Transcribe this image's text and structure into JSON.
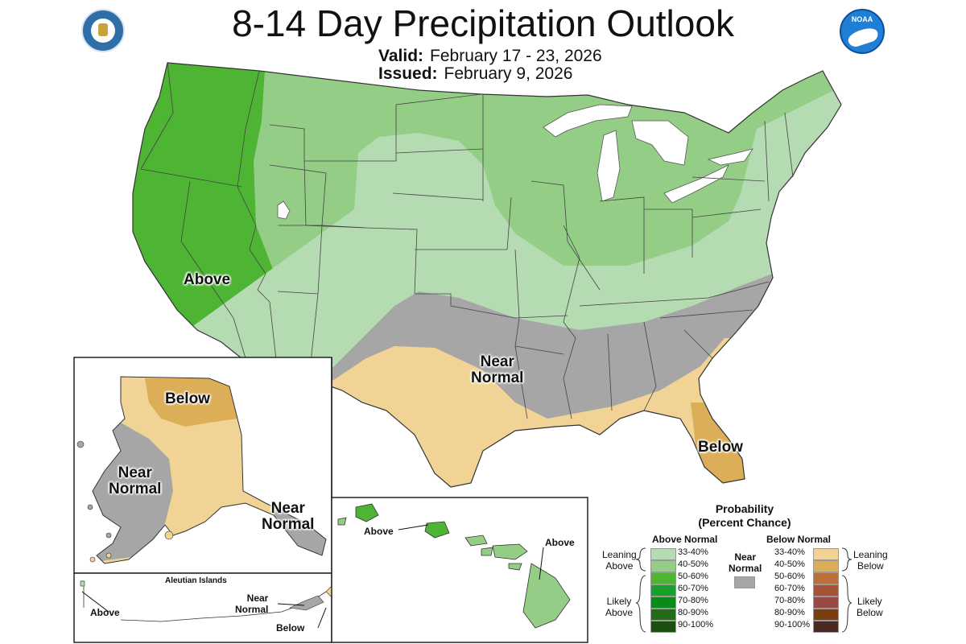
{
  "title": "8-14 Day Precipitation Outlook",
  "valid_label": "Valid:",
  "valid_dates": "February 17 - 23, 2026",
  "issued_label": "Issued:",
  "issued_date": "February 9, 2026",
  "logo_left": "department-of-commerce-seal",
  "logo_right": "noaa-logo",
  "regions": {
    "conus_above": "Above",
    "conus_near_normal": "Near\nNormal",
    "florida_below": "Below",
    "alaska_below": "Below",
    "alaska_near_normal": "Near\nNormal",
    "southeast_alaska_near_normal": "Near\nNormal",
    "hawaii_above_1": "Above",
    "hawaii_above_2": "Above",
    "aleutian_title": "Aleutian Islands",
    "aleutian_above": "Above",
    "aleutian_near_normal": "Near\nNormal",
    "aleutian_below": "Below"
  },
  "legend": {
    "title": "Probability",
    "subtitle": "(Percent Chance)",
    "above_header": "Above Normal",
    "below_header": "Below Normal",
    "near_label": "Near\nNormal",
    "leaning_above": "Leaning\nAbove",
    "likely_above": "Likely\nAbove",
    "leaning_below": "Leaning\nBelow",
    "likely_below": "Likely\nBelow",
    "above_ranges": [
      "33-40%",
      "40-50%",
      "50-60%",
      "60-70%",
      "70-80%",
      "80-90%",
      "90-100%"
    ],
    "below_ranges": [
      "33-40%",
      "40-50%",
      "50-60%",
      "60-70%",
      "70-80%",
      "80-90%",
      "90-100%"
    ],
    "above_colors": [
      "#b5dbb2",
      "#94ce86",
      "#4db434",
      "#17a02a",
      "#0b8a1a",
      "#226c17",
      "#1e4f12"
    ],
    "below_colors": [
      "#f1d495",
      "#dcae58",
      "#bb6f3b",
      "#a85434",
      "#9a4a45",
      "#7a3e10",
      "#4a2a25"
    ],
    "near_color": "#a6a6a6"
  }
}
